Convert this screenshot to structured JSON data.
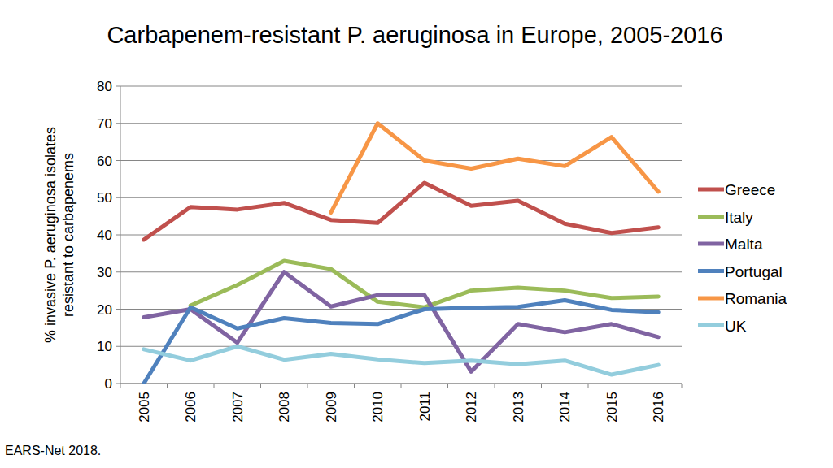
{
  "chart_data": {
    "type": "line",
    "title": "Carbapenem-resistant P. aeruginosa in Europe, 2005-2016",
    "y_label": "% invasive P. aeruginosa isolates resistant to carbapenems",
    "annotations": [
      "EARS-Net 2018."
    ],
    "categories": [
      "2005",
      "2006",
      "2007",
      "2008",
      "2009",
      "2010",
      "2011",
      "2012",
      "2013",
      "2014",
      "2015",
      "2016"
    ],
    "series": [
      {
        "name": "Greece",
        "color": "#c0504d",
        "values": [
          38.7,
          47.5,
          46.8,
          48.6,
          44,
          43.2,
          54,
          47.8,
          49.2,
          43,
          40.5,
          42
        ]
      },
      {
        "name": "Italy",
        "color": "#9bbb59",
        "values": [
          null,
          21,
          26.5,
          33,
          30.8,
          22,
          20.5,
          25,
          25.8,
          25,
          23,
          23.4
        ]
      },
      {
        "name": "Malta",
        "color": "#8064a2",
        "values": [
          17.8,
          20,
          11,
          30,
          20.7,
          23.8,
          23.8,
          3.2,
          16,
          13.8,
          16,
          12.5
        ]
      },
      {
        "name": "Portugal",
        "color": "#4f81bd",
        "values": [
          0,
          20.5,
          14.8,
          17.6,
          16.3,
          16,
          20,
          20.4,
          20.6,
          22.4,
          19.8,
          19.2
        ]
      },
      {
        "name": "Romania",
        "color": "#f79646",
        "values": [
          null,
          null,
          null,
          null,
          46,
          70,
          60,
          57.8,
          60.5,
          58.5,
          66.3,
          51.6
        ]
      },
      {
        "name": "UK",
        "color": "#93cddd",
        "values": [
          9.2,
          6.2,
          10,
          6.4,
          8,
          6.5,
          5.5,
          6.2,
          5.2,
          6.2,
          2.4,
          5
        ]
      }
    ],
    "ylim": [
      0,
      80
    ],
    "yticks": [
      0,
      10,
      20,
      30,
      40,
      50,
      60,
      70,
      80
    ],
    "grid": true,
    "legend": "right"
  }
}
